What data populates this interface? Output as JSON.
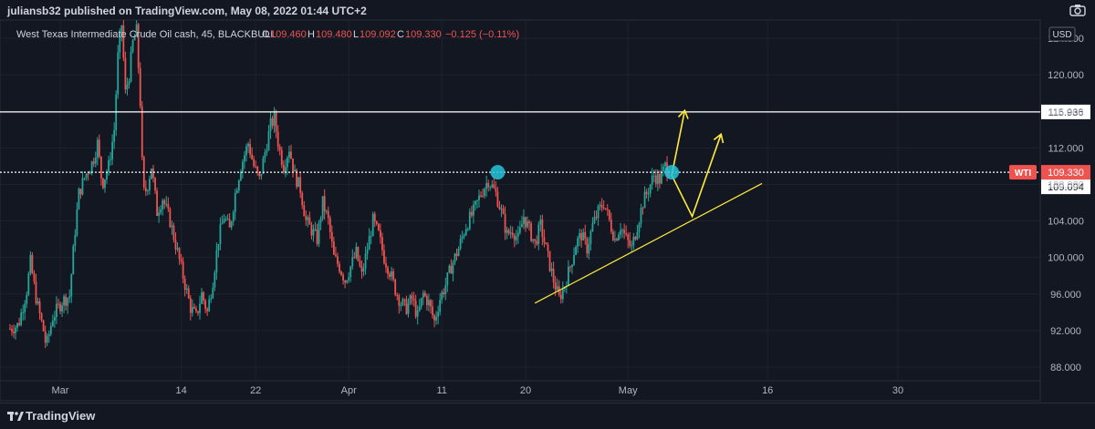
{
  "header": {
    "published_text": "juliansb32 published on TradingView.com, May 08, 2022 01:44 UTC+2"
  },
  "legend": {
    "symbol_text": "West Texas Intermediate Crude Oil cash, 45, BLACKBULL",
    "open_label": "O",
    "open_value": "109.460",
    "high_label": "H",
    "high_value": "109.480",
    "low_label": "L",
    "low_value": "109.092",
    "close_label": "C",
    "close_value": "109.330",
    "change": "−0.125 (−0.11%)"
  },
  "footer": {
    "brand": "TradingView"
  },
  "currency_label": "USD",
  "colors": {
    "background": "#131722",
    "up": "#26a69a",
    "down": "#ef5350",
    "grid": "#1e222d",
    "text": "#b2b5be",
    "annotation": "#ffeb3b",
    "marker": "#26c6da"
  },
  "chart_data": {
    "type": "candlestick",
    "timeframe": "45",
    "y_axis": {
      "min": 86.5,
      "max": 126,
      "ticks": [
        "88.000",
        "92.000",
        "96.000",
        "100.000",
        "104.000",
        "108.000",
        "112.000",
        "116.000",
        "120.000",
        "124.000"
      ]
    },
    "x_axis": {
      "labels": [
        {
          "label": "Mar",
          "day": 0
        },
        {
          "label": "14",
          "day": 13
        },
        {
          "label": "22",
          "day": 21
        },
        {
          "label": "Apr",
          "day": 31
        },
        {
          "label": "11",
          "day": 41
        },
        {
          "label": "20",
          "day": 50
        },
        {
          "label": "May",
          "day": 61
        },
        {
          "label": "16",
          "day": 76
        },
        {
          "label": "30",
          "day": 90
        }
      ]
    },
    "price_path": [
      {
        "day": -5.4,
        "price": 92.2
      },
      {
        "day": -4.5,
        "price": 92.6
      },
      {
        "day": -3.6,
        "price": 96.4
      },
      {
        "day": -3.2,
        "price": 99.5
      },
      {
        "day": -2.5,
        "price": 95.0
      },
      {
        "day": -1.8,
        "price": 92.0
      },
      {
        "day": -1.5,
        "price": 90.2
      },
      {
        "day": -0.8,
        "price": 93.5
      },
      {
        "day": 0.2,
        "price": 95.2
      },
      {
        "day": 1.0,
        "price": 95.8
      },
      {
        "day": 1.6,
        "price": 103.0
      },
      {
        "day": 2.0,
        "price": 107.0
      },
      {
        "day": 2.7,
        "price": 109.0
      },
      {
        "day": 3.5,
        "price": 110.5
      },
      {
        "day": 4.0,
        "price": 112.5
      },
      {
        "day": 4.5,
        "price": 108.0
      },
      {
        "day": 5.2,
        "price": 110.0
      },
      {
        "day": 5.8,
        "price": 114.0
      },
      {
        "day": 6.2,
        "price": 122.0
      },
      {
        "day": 6.6,
        "price": 125.5
      },
      {
        "day": 7.0,
        "price": 118.0
      },
      {
        "day": 7.4,
        "price": 120.0
      },
      {
        "day": 7.8,
        "price": 123.5
      },
      {
        "day": 8.2,
        "price": 124.8
      },
      {
        "day": 8.6,
        "price": 117.0
      },
      {
        "day": 8.9,
        "price": 107.0
      },
      {
        "day": 9.3,
        "price": 107.5
      },
      {
        "day": 9.8,
        "price": 110.0
      },
      {
        "day": 10.4,
        "price": 105.0
      },
      {
        "day": 11.0,
        "price": 106.5
      },
      {
        "day": 11.8,
        "price": 104.0
      },
      {
        "day": 12.5,
        "price": 101.0
      },
      {
        "day": 13.3,
        "price": 97.5
      },
      {
        "day": 14.0,
        "price": 94.5
      },
      {
        "day": 14.6,
        "price": 93.5
      },
      {
        "day": 15.2,
        "price": 96.0
      },
      {
        "day": 15.8,
        "price": 94.0
      },
      {
        "day": 16.4,
        "price": 97.5
      },
      {
        "day": 17.0,
        "price": 102.0
      },
      {
        "day": 17.6,
        "price": 104.5
      },
      {
        "day": 18.2,
        "price": 103.0
      },
      {
        "day": 18.8,
        "price": 107.0
      },
      {
        "day": 19.4,
        "price": 110.0
      },
      {
        "day": 20.2,
        "price": 112.5
      },
      {
        "day": 20.8,
        "price": 110.0
      },
      {
        "day": 21.4,
        "price": 108.5
      },
      {
        "day": 22.0,
        "price": 111.5
      },
      {
        "day": 22.6,
        "price": 114.5
      },
      {
        "day": 23.0,
        "price": 115.2
      },
      {
        "day": 23.5,
        "price": 112.0
      },
      {
        "day": 24.0,
        "price": 110.0
      },
      {
        "day": 24.6,
        "price": 112.0
      },
      {
        "day": 25.2,
        "price": 109.0
      },
      {
        "day": 25.8,
        "price": 107.5
      },
      {
        "day": 26.4,
        "price": 104.0
      },
      {
        "day": 27.0,
        "price": 103.0
      },
      {
        "day": 27.6,
        "price": 102.0
      },
      {
        "day": 28.2,
        "price": 106.0
      },
      {
        "day": 28.8,
        "price": 104.0
      },
      {
        "day": 29.4,
        "price": 100.0
      },
      {
        "day": 30.0,
        "price": 99.0
      },
      {
        "day": 30.6,
        "price": 97.5
      },
      {
        "day": 31.2,
        "price": 99.0
      },
      {
        "day": 31.8,
        "price": 100.5
      },
      {
        "day": 32.4,
        "price": 98.0
      },
      {
        "day": 33.0,
        "price": 101.0
      },
      {
        "day": 33.6,
        "price": 104.0
      },
      {
        "day": 34.2,
        "price": 102.5
      },
      {
        "day": 34.8,
        "price": 100.0
      },
      {
        "day": 35.4,
        "price": 98.5
      },
      {
        "day": 36.0,
        "price": 96.5
      },
      {
        "day": 36.6,
        "price": 95.0
      },
      {
        "day": 37.2,
        "price": 94.5
      },
      {
        "day": 37.8,
        "price": 95.5
      },
      {
        "day": 38.4,
        "price": 93.5
      },
      {
        "day": 39.0,
        "price": 96.0
      },
      {
        "day": 39.6,
        "price": 95.0
      },
      {
        "day": 40.2,
        "price": 93.0
      },
      {
        "day": 40.8,
        "price": 95.5
      },
      {
        "day": 41.4,
        "price": 97.0
      },
      {
        "day": 42.0,
        "price": 99.0
      },
      {
        "day": 42.8,
        "price": 101.0
      },
      {
        "day": 43.6,
        "price": 103.5
      },
      {
        "day": 44.4,
        "price": 105.0
      },
      {
        "day": 45.2,
        "price": 107.0
      },
      {
        "day": 46.0,
        "price": 108.5
      },
      {
        "day": 46.8,
        "price": 107.0
      },
      {
        "day": 47.4,
        "price": 105.0
      },
      {
        "day": 48.0,
        "price": 102.5
      },
      {
        "day": 48.6,
        "price": 103.0
      },
      {
        "day": 49.2,
        "price": 102.0
      },
      {
        "day": 49.8,
        "price": 104.5
      },
      {
        "day": 50.4,
        "price": 103.0
      },
      {
        "day": 51.0,
        "price": 101.5
      },
      {
        "day": 51.6,
        "price": 103.5
      },
      {
        "day": 52.4,
        "price": 100.0
      },
      {
        "day": 53.0,
        "price": 97.5
      },
      {
        "day": 53.6,
        "price": 95.5
      },
      {
        "day": 54.2,
        "price": 97.0
      },
      {
        "day": 54.8,
        "price": 99.0
      },
      {
        "day": 55.4,
        "price": 101.5
      },
      {
        "day": 56.0,
        "price": 102.5
      },
      {
        "day": 56.6,
        "price": 101.0
      },
      {
        "day": 57.2,
        "price": 103.5
      },
      {
        "day": 57.8,
        "price": 105.0
      },
      {
        "day": 58.4,
        "price": 106.0
      },
      {
        "day": 59.0,
        "price": 104.0
      },
      {
        "day": 59.6,
        "price": 102.0
      },
      {
        "day": 60.2,
        "price": 103.5
      },
      {
        "day": 60.8,
        "price": 102.0
      },
      {
        "day": 61.4,
        "price": 101.0
      },
      {
        "day": 62.0,
        "price": 103.5
      },
      {
        "day": 62.6,
        "price": 106.0
      },
      {
        "day": 63.2,
        "price": 107.5
      },
      {
        "day": 63.8,
        "price": 109.0
      },
      {
        "day": 64.4,
        "price": 108.5
      },
      {
        "day": 65.0,
        "price": 110.0
      },
      {
        "day": 65.6,
        "price": 109.3
      }
    ],
    "horizontal_lines": [
      {
        "price": 115.936,
        "label": "115.936",
        "color": "#ffffff",
        "style": "solid"
      },
      {
        "price": 109.33,
        "color": "#ffffff",
        "style": "dotted"
      }
    ],
    "price_tags": [
      {
        "text": "WTI",
        "price": 109.33,
        "color": "#ef5350"
      },
      {
        "text": "109.330",
        "price": 109.33,
        "color": "#ef5350"
      },
      {
        "text": "109.094",
        "price": 108.6,
        "color": "#ffffff"
      }
    ],
    "markers": [
      {
        "day": 47.0,
        "price": 109.33,
        "color": "#26c6da"
      },
      {
        "day": 65.7,
        "price": 109.33,
        "color": "#26c6da"
      }
    ],
    "trendline": {
      "from": {
        "day": 51.0,
        "price": 95.0
      },
      "to": {
        "day": 75.4,
        "price": 108.1
      },
      "color": "#ffeb3b"
    },
    "projection_arrows": [
      {
        "points": [
          {
            "day": 65.7,
            "price": 109.0
          },
          {
            "day": 67.1,
            "price": 116.1
          }
        ],
        "color": "#ffeb3b"
      },
      {
        "points": [
          {
            "day": 65.7,
            "price": 109.0
          },
          {
            "day": 67.9,
            "price": 104.5
          },
          {
            "day": 71.0,
            "price": 113.5
          }
        ],
        "color": "#ffeb3b"
      }
    ]
  }
}
